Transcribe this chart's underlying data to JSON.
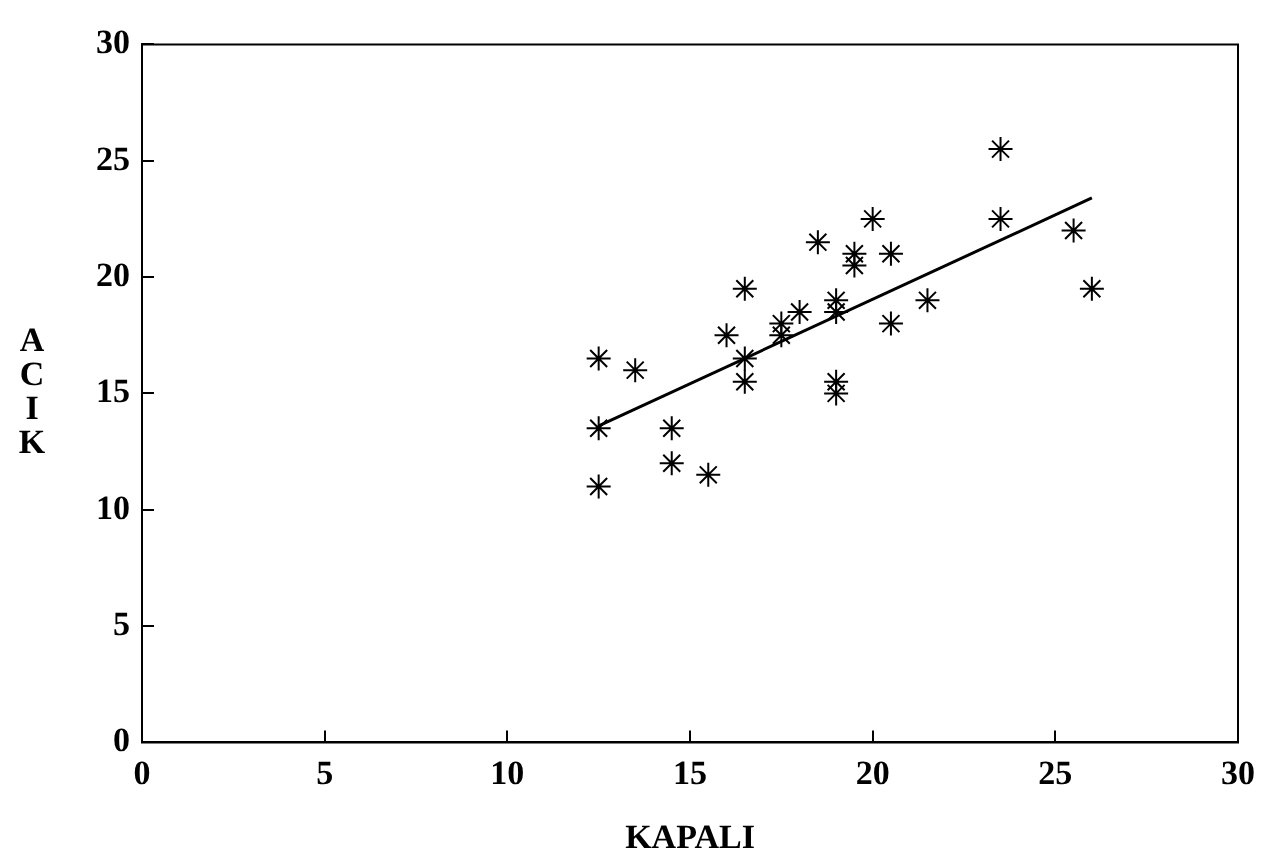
{
  "chart_data": {
    "type": "scatter",
    "xlabel": "KAPALI",
    "ylabel": "ACIK",
    "xlim": [
      0,
      30
    ],
    "ylim": [
      0,
      30
    ],
    "xticks": [
      0,
      5,
      10,
      15,
      20,
      25,
      30
    ],
    "yticks": [
      0,
      5,
      10,
      15,
      20,
      25,
      30
    ],
    "grid": false,
    "legend": false,
    "marker": "cross",
    "series": [
      {
        "color": "#000000",
        "x": [
          12.5,
          12.5,
          12.5,
          13.5,
          14.5,
          14.5,
          15.5,
          16,
          16.5,
          16.5,
          16.5,
          17.5,
          17.5,
          18,
          18.5,
          19,
          19,
          19,
          19,
          19.5,
          19.5,
          20,
          20.5,
          20.5,
          21.5,
          23.5,
          23.5,
          25.5,
          26
        ],
        "values": [
          16.5,
          13.5,
          11,
          16,
          13.5,
          12,
          11.5,
          17.5,
          19.5,
          16.5,
          15.5,
          18,
          17.5,
          18.5,
          21.5,
          19,
          18.5,
          15.5,
          15,
          21,
          20.5,
          22.5,
          21,
          18,
          19,
          25.5,
          22.5,
          22,
          19.5
        ]
      },
      {
        "type": "line",
        "color": "#000000",
        "marker": "none",
        "x": [
          12.5,
          26
        ],
        "values": [
          13.6,
          23.4
        ]
      }
    ]
  }
}
